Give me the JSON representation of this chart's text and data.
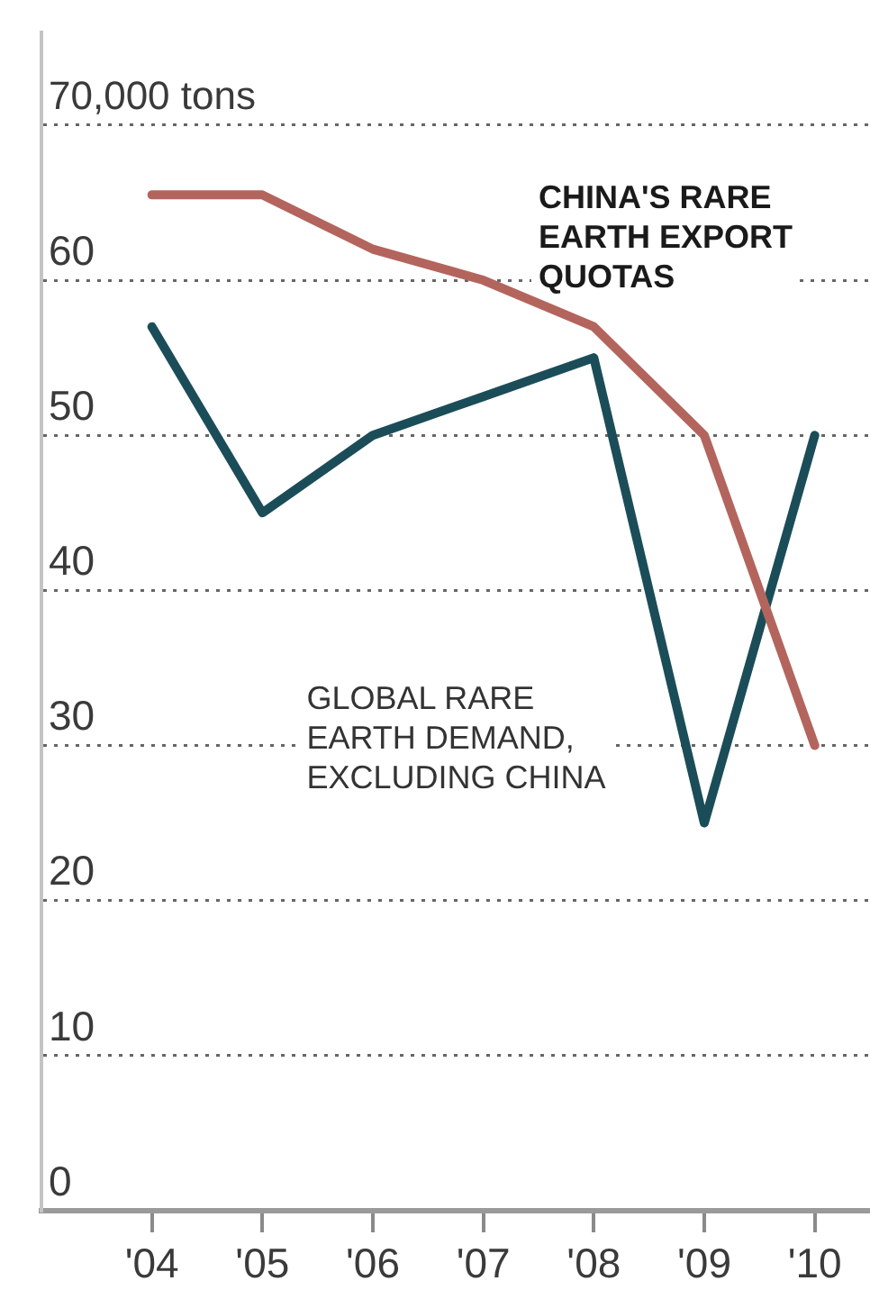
{
  "chart_data": {
    "type": "line",
    "x": [
      2004,
      2005,
      2006,
      2007,
      2008,
      2009,
      2010
    ],
    "series": [
      {
        "name": "CHINA'S RARE EARTH EXPORT QUOTAS",
        "color": "#b3655d",
        "values": [
          65.5,
          65.5,
          62,
          60,
          57,
          50,
          30
        ]
      },
      {
        "name": "GLOBAL RARE EARTH DEMAND, EXCLUDING CHINA",
        "color": "#1b4d59",
        "values": [
          57,
          45,
          50,
          52.5,
          55,
          25,
          50
        ]
      }
    ],
    "ylabel": "70,000 tons",
    "xlim": [
      2003,
      2010.5
    ],
    "xticks": [
      {
        "value": 2004,
        "label": "'04"
      },
      {
        "value": 2005,
        "label": "'05"
      },
      {
        "value": 2006,
        "label": "'06"
      },
      {
        "value": 2007,
        "label": "'07"
      },
      {
        "value": 2008,
        "label": "'08"
      },
      {
        "value": 2009,
        "label": "'09"
      },
      {
        "value": 2010,
        "label": "'10"
      }
    ],
    "ylim": [
      0,
      76
    ],
    "yticks": [
      0,
      10,
      20,
      30,
      40,
      50,
      60,
      {
        "value": 70,
        "label": null
      }
    ],
    "grid": "y"
  }
}
